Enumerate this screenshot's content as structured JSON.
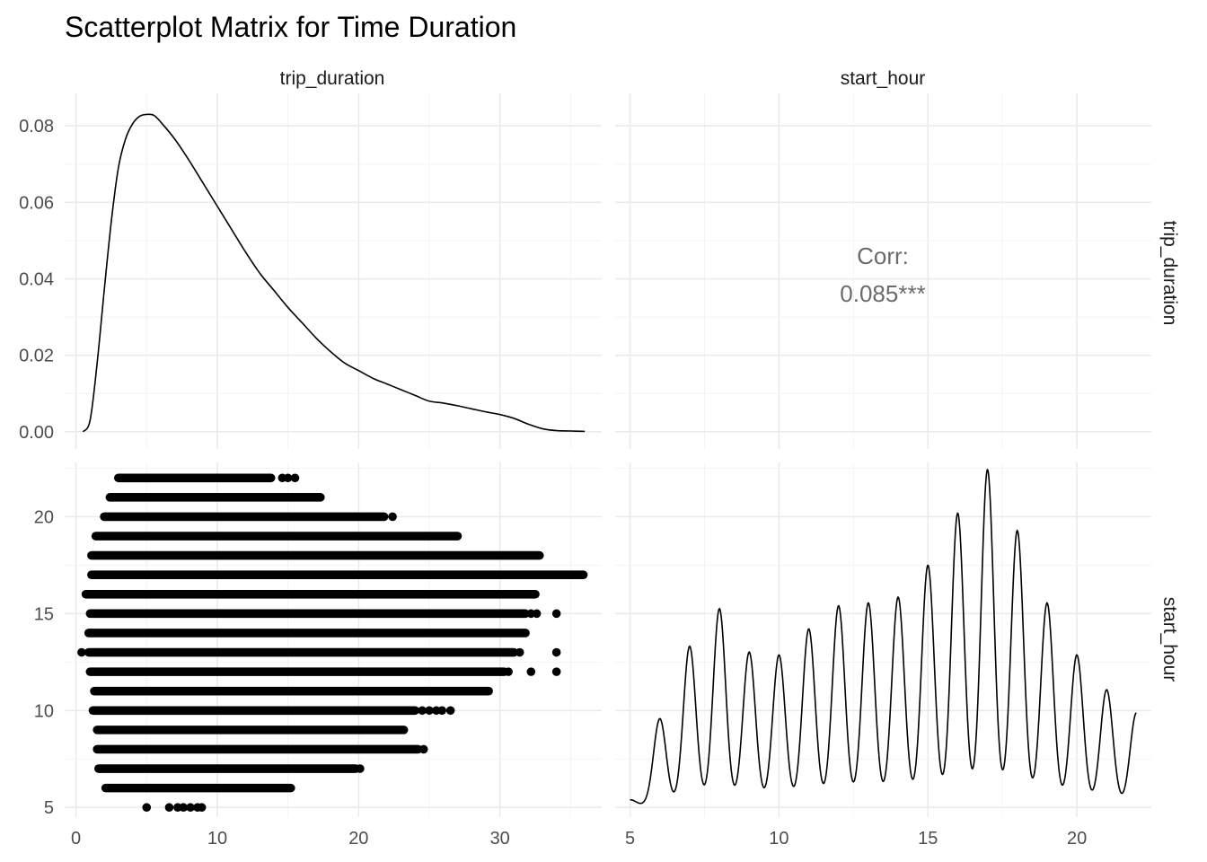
{
  "chart_data": {
    "type": "scatterplot-matrix",
    "title": "Scatterplot Matrix for Time Duration",
    "variables": [
      "trip_duration",
      "start_hour"
    ],
    "colors": {
      "ink": "#000000",
      "grid": "#ebebeb",
      "text": "#4d4d4d",
      "corr_text": "#6b6b6b"
    },
    "x_axes": {
      "trip_duration": {
        "range": [
          -0.8,
          37.2
        ],
        "ticks": [
          0,
          10,
          20,
          30
        ],
        "tick_labels": [
          "0",
          "10",
          "20",
          "30"
        ]
      },
      "start_hour": {
        "range": [
          4.5,
          22.5
        ],
        "ticks": [
          5,
          10,
          15,
          20
        ],
        "tick_labels": [
          "5",
          "10",
          "15",
          "20"
        ]
      }
    },
    "y_axes": {
      "density_top_left": {
        "range": [
          -0.0045,
          0.0885
        ],
        "ticks": [
          0,
          0.02,
          0.04,
          0.06,
          0.08
        ],
        "tick_labels": [
          "0.00",
          "0.02",
          "0.04",
          "0.06",
          "0.08"
        ]
      },
      "start_hour": {
        "range": [
          4.5,
          22.8
        ],
        "ticks": [
          5,
          10,
          15,
          20
        ],
        "tick_labels": [
          "5",
          "10",
          "15",
          "20"
        ]
      }
    },
    "panels": [
      {
        "position": "top-left",
        "type": "density",
        "variable": "trip_duration",
        "x": [
          0.5,
          1,
          1.5,
          2,
          2.5,
          3,
          3.5,
          4,
          4.5,
          5,
          5.5,
          6,
          7,
          8,
          9,
          10,
          11,
          12,
          13,
          14,
          15,
          16,
          17,
          18,
          19,
          20,
          21,
          22,
          23,
          24,
          25,
          26,
          27,
          28,
          29,
          30,
          31,
          32,
          33,
          34,
          35,
          36
        ],
        "y": [
          0.0,
          0.003,
          0.018,
          0.037,
          0.055,
          0.069,
          0.0765,
          0.0805,
          0.0825,
          0.083,
          0.0828,
          0.081,
          0.0765,
          0.071,
          0.065,
          0.059,
          0.053,
          0.047,
          0.0415,
          0.037,
          0.0325,
          0.0285,
          0.0245,
          0.021,
          0.018,
          0.016,
          0.014,
          0.0125,
          0.011,
          0.0095,
          0.008,
          0.0075,
          0.0068,
          0.006,
          0.0052,
          0.0045,
          0.0035,
          0.002,
          0.0008,
          0.0003,
          0.0002,
          0.0001
        ]
      },
      {
        "position": "top-right",
        "type": "correlation",
        "label": "Corr:",
        "value": "0.085***"
      },
      {
        "position": "bottom-left",
        "type": "scatter",
        "x_variable": "trip_duration",
        "y_variable": "start_hour",
        "bands": [
          {
            "hour": 5,
            "points": [
              5,
              6.6,
              7.2,
              7.6,
              8.1,
              8.6,
              8.9
            ]
          },
          {
            "hour": 6,
            "min": 2.1,
            "max": 15.2
          },
          {
            "hour": 7,
            "min": 1.6,
            "max": 19.8,
            "outliers": [
              20.1
            ]
          },
          {
            "hour": 8,
            "min": 1.5,
            "max": 24.2,
            "outliers": [
              24.6
            ]
          },
          {
            "hour": 9,
            "min": 1.5,
            "max": 23.2
          },
          {
            "hour": 10,
            "min": 1.2,
            "max": 24.0,
            "outliers": [
              24.5,
              25.0,
              25.5,
              25.9,
              26.5
            ]
          },
          {
            "hour": 11,
            "min": 1.3,
            "max": 29.2
          },
          {
            "hour": 12,
            "min": 1.0,
            "max": 30.3,
            "outliers": [
              30.6,
              32.2,
              34.0
            ]
          },
          {
            "hour": 13,
            "min": 0.9,
            "max": 31.0,
            "outliers": [
              0.4,
              31.4,
              34.0
            ]
          },
          {
            "hour": 14,
            "min": 0.9,
            "max": 31.8
          },
          {
            "hour": 15,
            "min": 1.0,
            "max": 31.8,
            "outliers": [
              32.2,
              32.6,
              34.0
            ]
          },
          {
            "hour": 16,
            "min": 0.7,
            "max": 32.5
          },
          {
            "hour": 17,
            "min": 1.1,
            "max": 35.9
          },
          {
            "hour": 18,
            "min": 1.1,
            "max": 32.8
          },
          {
            "hour": 19,
            "min": 1.4,
            "max": 27.0
          },
          {
            "hour": 20,
            "min": 2.0,
            "max": 21.8,
            "outliers": [
              22.4
            ]
          },
          {
            "hour": 21,
            "min": 2.4,
            "max": 17.3
          },
          {
            "hour": 22,
            "min": 3.0,
            "max": 13.8,
            "outliers": [
              3.3,
              14.6,
              15.0,
              15.5
            ]
          }
        ]
      },
      {
        "position": "bottom-right",
        "type": "density",
        "variable": "start_hour",
        "peaks": [
          {
            "hour": 5,
            "density": 0.002
          },
          {
            "hour": 6,
            "density": 0.03
          },
          {
            "hour": 7,
            "density": 0.055
          },
          {
            "hour": 8,
            "density": 0.068
          },
          {
            "hour": 9,
            "density": 0.053
          },
          {
            "hour": 10,
            "density": 0.052
          },
          {
            "hour": 11,
            "density": 0.061
          },
          {
            "hour": 12,
            "density": 0.069
          },
          {
            "hour": 13,
            "density": 0.07
          },
          {
            "hour": 14,
            "density": 0.072
          },
          {
            "hour": 15,
            "density": 0.083
          },
          {
            "hour": 16,
            "density": 0.101
          },
          {
            "hour": 17,
            "density": 0.116
          },
          {
            "hour": 18,
            "density": 0.095
          },
          {
            "hour": 19,
            "density": 0.07
          },
          {
            "hour": 20,
            "density": 0.052
          },
          {
            "hour": 21,
            "density": 0.04
          },
          {
            "hour": 22,
            "density": 0.032
          }
        ]
      }
    ]
  }
}
